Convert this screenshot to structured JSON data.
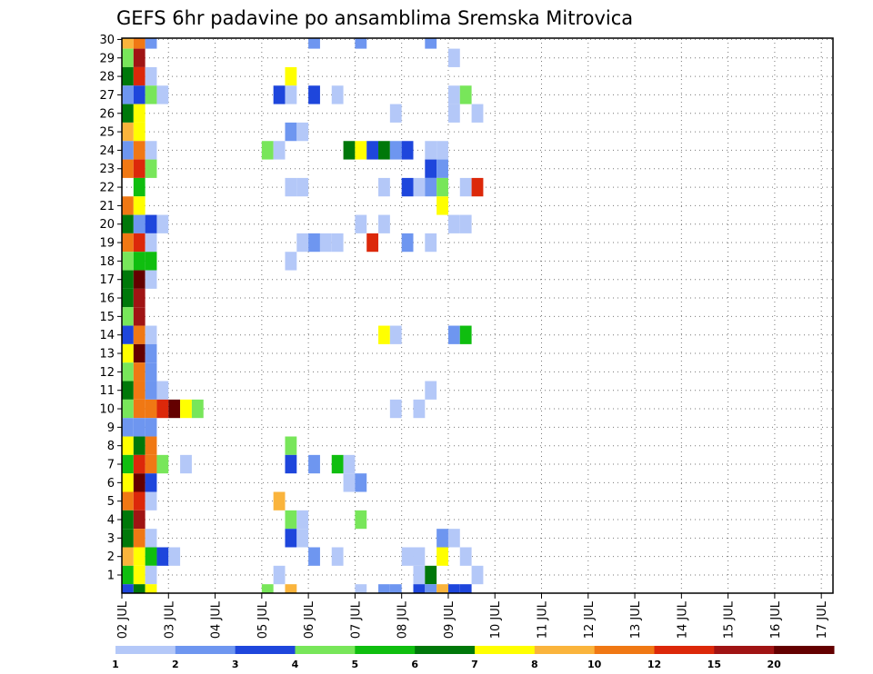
{
  "chart_data": {
    "type": "heatmap",
    "title": "GEFS 6hr padavine po ansamblima Sremska Mitrovica",
    "x_tick_labels": [
      "02 JUL",
      "03 JUL",
      "04 JUL",
      "05 JUL",
      "06 JUL",
      "07 JUL",
      "08 JUL",
      "09 JUL",
      "10 JUL",
      "11 JUL",
      "12 JUL",
      "13 JUL",
      "14 JUL",
      "15 JUL",
      "16 JUL",
      "17 JUL"
    ],
    "y_tick_labels": [
      "1",
      "2",
      "3",
      "4",
      "5",
      "6",
      "7",
      "8",
      "9",
      "10",
      "11",
      "12",
      "13",
      "14",
      "15",
      "16",
      "17",
      "18",
      "19",
      "20",
      "21",
      "22",
      "23",
      "24",
      "25",
      "26",
      "27",
      "28",
      "29",
      "30"
    ],
    "x_range": [
      0,
      61
    ],
    "y_range": [
      0,
      30
    ],
    "grid": true,
    "legend": {
      "placement": "bottom",
      "colors": [
        "#b4c8f8",
        "#6e96f0",
        "#1e46dc",
        "#78e65a",
        "#0fbe0f",
        "#00780a",
        "#ffff00",
        "#fab43c",
        "#f07814",
        "#dc280a",
        "#a01414",
        "#640000"
      ],
      "labels": [
        "1",
        "2",
        "3",
        "4",
        "5",
        "6",
        "7",
        "8",
        "10",
        "12",
        "15",
        "20"
      ]
    },
    "cells_description": "each cell: [x index (6-hour step from 02 JUL 00z), member row (1-30, 0 = row below 1), color class 0-11]",
    "cells": [
      [
        0,
        30,
        7
      ],
      [
        1,
        30,
        8
      ],
      [
        2,
        30,
        1
      ],
      [
        16,
        30,
        1
      ],
      [
        20,
        30,
        1
      ],
      [
        26,
        30,
        1
      ],
      [
        0,
        29,
        3
      ],
      [
        1,
        29,
        10
      ],
      [
        28,
        29,
        0
      ],
      [
        0,
        28,
        5
      ],
      [
        1,
        28,
        9
      ],
      [
        2,
        28,
        0
      ],
      [
        14,
        28,
        6
      ],
      [
        0,
        27,
        1
      ],
      [
        1,
        27,
        2
      ],
      [
        2,
        27,
        3
      ],
      [
        3,
        27,
        0
      ],
      [
        13,
        27,
        2
      ],
      [
        14,
        27,
        0
      ],
      [
        16,
        27,
        2
      ],
      [
        18,
        27,
        0
      ],
      [
        28,
        27,
        0
      ],
      [
        29,
        27,
        3
      ],
      [
        0,
        26,
        5
      ],
      [
        1,
        26,
        6
      ],
      [
        23,
        26,
        0
      ],
      [
        28,
        26,
        0
      ],
      [
        30,
        26,
        0
      ],
      [
        0,
        25,
        7
      ],
      [
        1,
        25,
        6
      ],
      [
        14,
        25,
        1
      ],
      [
        15,
        25,
        0
      ],
      [
        0,
        24,
        1
      ],
      [
        1,
        24,
        8
      ],
      [
        2,
        24,
        0
      ],
      [
        12,
        24,
        3
      ],
      [
        13,
        24,
        0
      ],
      [
        19,
        24,
        5
      ],
      [
        20,
        24,
        6
      ],
      [
        21,
        24,
        2
      ],
      [
        22,
        24,
        5
      ],
      [
        23,
        24,
        1
      ],
      [
        24,
        24,
        2
      ],
      [
        26,
        24,
        0
      ],
      [
        27,
        24,
        0
      ],
      [
        0,
        23,
        8
      ],
      [
        1,
        23,
        9
      ],
      [
        2,
        23,
        3
      ],
      [
        26,
        23,
        2
      ],
      [
        27,
        23,
        1
      ],
      [
        1,
        22,
        4
      ],
      [
        14,
        22,
        0
      ],
      [
        15,
        22,
        0
      ],
      [
        22,
        22,
        0
      ],
      [
        24,
        22,
        2
      ],
      [
        25,
        22,
        0
      ],
      [
        26,
        22,
        1
      ],
      [
        27,
        22,
        3
      ],
      [
        29,
        22,
        0
      ],
      [
        30,
        22,
        9
      ],
      [
        0,
        21,
        8
      ],
      [
        1,
        21,
        6
      ],
      [
        27,
        21,
        6
      ],
      [
        0,
        20,
        5
      ],
      [
        1,
        20,
        1
      ],
      [
        2,
        20,
        2
      ],
      [
        3,
        20,
        0
      ],
      [
        20,
        20,
        0
      ],
      [
        22,
        20,
        0
      ],
      [
        28,
        20,
        0
      ],
      [
        29,
        20,
        0
      ],
      [
        0,
        19,
        8
      ],
      [
        1,
        19,
        9
      ],
      [
        2,
        19,
        0
      ],
      [
        15,
        19,
        0
      ],
      [
        16,
        19,
        1
      ],
      [
        17,
        19,
        0
      ],
      [
        18,
        19,
        0
      ],
      [
        21,
        19,
        9
      ],
      [
        24,
        19,
        1
      ],
      [
        26,
        19,
        0
      ],
      [
        0,
        18,
        3
      ],
      [
        1,
        18,
        4
      ],
      [
        2,
        18,
        4
      ],
      [
        14,
        18,
        0
      ],
      [
        0,
        17,
        5
      ],
      [
        1,
        17,
        11
      ],
      [
        2,
        17,
        0
      ],
      [
        0,
        16,
        5
      ],
      [
        1,
        16,
        10
      ],
      [
        0,
        15,
        3
      ],
      [
        1,
        15,
        10
      ],
      [
        0,
        14,
        2
      ],
      [
        1,
        14,
        8
      ],
      [
        2,
        14,
        0
      ],
      [
        22,
        14,
        6
      ],
      [
        23,
        14,
        0
      ],
      [
        28,
        14,
        1
      ],
      [
        29,
        14,
        4
      ],
      [
        0,
        13,
        6
      ],
      [
        1,
        13,
        11
      ],
      [
        2,
        13,
        1
      ],
      [
        0,
        12,
        3
      ],
      [
        1,
        12,
        8
      ],
      [
        2,
        12,
        1
      ],
      [
        0,
        11,
        5
      ],
      [
        1,
        11,
        8
      ],
      [
        2,
        11,
        1
      ],
      [
        3,
        11,
        0
      ],
      [
        26,
        11,
        0
      ],
      [
        0,
        10,
        3
      ],
      [
        1,
        10,
        8
      ],
      [
        2,
        10,
        8
      ],
      [
        3,
        10,
        9
      ],
      [
        4,
        10,
        11
      ],
      [
        5,
        10,
        6
      ],
      [
        6,
        10,
        3
      ],
      [
        23,
        10,
        0
      ],
      [
        25,
        10,
        0
      ],
      [
        0,
        9,
        1
      ],
      [
        1,
        9,
        1
      ],
      [
        2,
        9,
        1
      ],
      [
        0,
        8,
        6
      ],
      [
        1,
        8,
        5
      ],
      [
        2,
        8,
        8
      ],
      [
        14,
        8,
        3
      ],
      [
        0,
        7,
        4
      ],
      [
        1,
        7,
        9
      ],
      [
        2,
        7,
        8
      ],
      [
        3,
        7,
        3
      ],
      [
        5,
        7,
        0
      ],
      [
        14,
        7,
        2
      ],
      [
        16,
        7,
        1
      ],
      [
        18,
        7,
        4
      ],
      [
        19,
        7,
        0
      ],
      [
        0,
        6,
        6
      ],
      [
        1,
        6,
        11
      ],
      [
        2,
        6,
        2
      ],
      [
        19,
        6,
        0
      ],
      [
        20,
        6,
        1
      ],
      [
        0,
        5,
        8
      ],
      [
        1,
        5,
        9
      ],
      [
        2,
        5,
        0
      ],
      [
        13,
        5,
        7
      ],
      [
        0,
        4,
        5
      ],
      [
        1,
        4,
        10
      ],
      [
        14,
        4,
        3
      ],
      [
        15,
        4,
        0
      ],
      [
        20,
        4,
        3
      ],
      [
        0,
        3,
        5
      ],
      [
        1,
        3,
        8
      ],
      [
        2,
        3,
        0
      ],
      [
        14,
        3,
        2
      ],
      [
        15,
        3,
        0
      ],
      [
        27,
        3,
        1
      ],
      [
        28,
        3,
        0
      ],
      [
        0,
        2,
        7
      ],
      [
        1,
        2,
        6
      ],
      [
        2,
        2,
        4
      ],
      [
        3,
        2,
        2
      ],
      [
        4,
        2,
        0
      ],
      [
        16,
        2,
        1
      ],
      [
        18,
        2,
        0
      ],
      [
        24,
        2,
        0
      ],
      [
        25,
        2,
        0
      ],
      [
        27,
        2,
        6
      ],
      [
        29,
        2,
        0
      ],
      [
        0,
        1,
        4
      ],
      [
        1,
        1,
        6
      ],
      [
        2,
        1,
        0
      ],
      [
        13,
        1,
        0
      ],
      [
        25,
        1,
        0
      ],
      [
        26,
        1,
        5
      ],
      [
        30,
        1,
        0
      ],
      [
        0,
        0,
        2
      ],
      [
        1,
        0,
        5
      ],
      [
        2,
        0,
        6
      ],
      [
        12,
        0,
        3
      ],
      [
        14,
        0,
        7
      ],
      [
        20,
        0,
        0
      ],
      [
        22,
        0,
        1
      ],
      [
        23,
        0,
        1
      ],
      [
        25,
        0,
        2
      ],
      [
        26,
        0,
        1
      ],
      [
        27,
        0,
        7
      ],
      [
        28,
        0,
        2
      ],
      [
        29,
        0,
        2
      ],
      [
        0,
        -1,
        4
      ],
      [
        1,
        -1,
        10
      ],
      [
        2,
        -1,
        4
      ],
      [
        28,
        -1,
        1
      ],
      [
        29,
        -1,
        2
      ],
      [
        30,
        -1,
        0
      ]
    ]
  }
}
